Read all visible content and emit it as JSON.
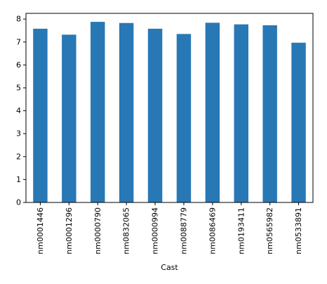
{
  "chart_data": {
    "type": "bar",
    "title": "",
    "xlabel": "Cast",
    "ylabel": "",
    "categories": [
      "nm0001446",
      "nm0001296",
      "nm0000790",
      "nm0832065",
      "nm0000994",
      "nm0088779",
      "nm0086469",
      "nm0193411",
      "nm0565982",
      "nm0533891"
    ],
    "values": [
      7.58,
      7.32,
      7.88,
      7.83,
      7.58,
      7.35,
      7.84,
      7.77,
      7.73,
      6.97
    ],
    "ylim": [
      0,
      8.25
    ],
    "yticks": [
      0,
      1,
      2,
      3,
      4,
      5,
      6,
      7,
      8
    ],
    "grid": false,
    "legend": "none",
    "bar_color": "#2878b5",
    "axis_color": "#000000"
  }
}
